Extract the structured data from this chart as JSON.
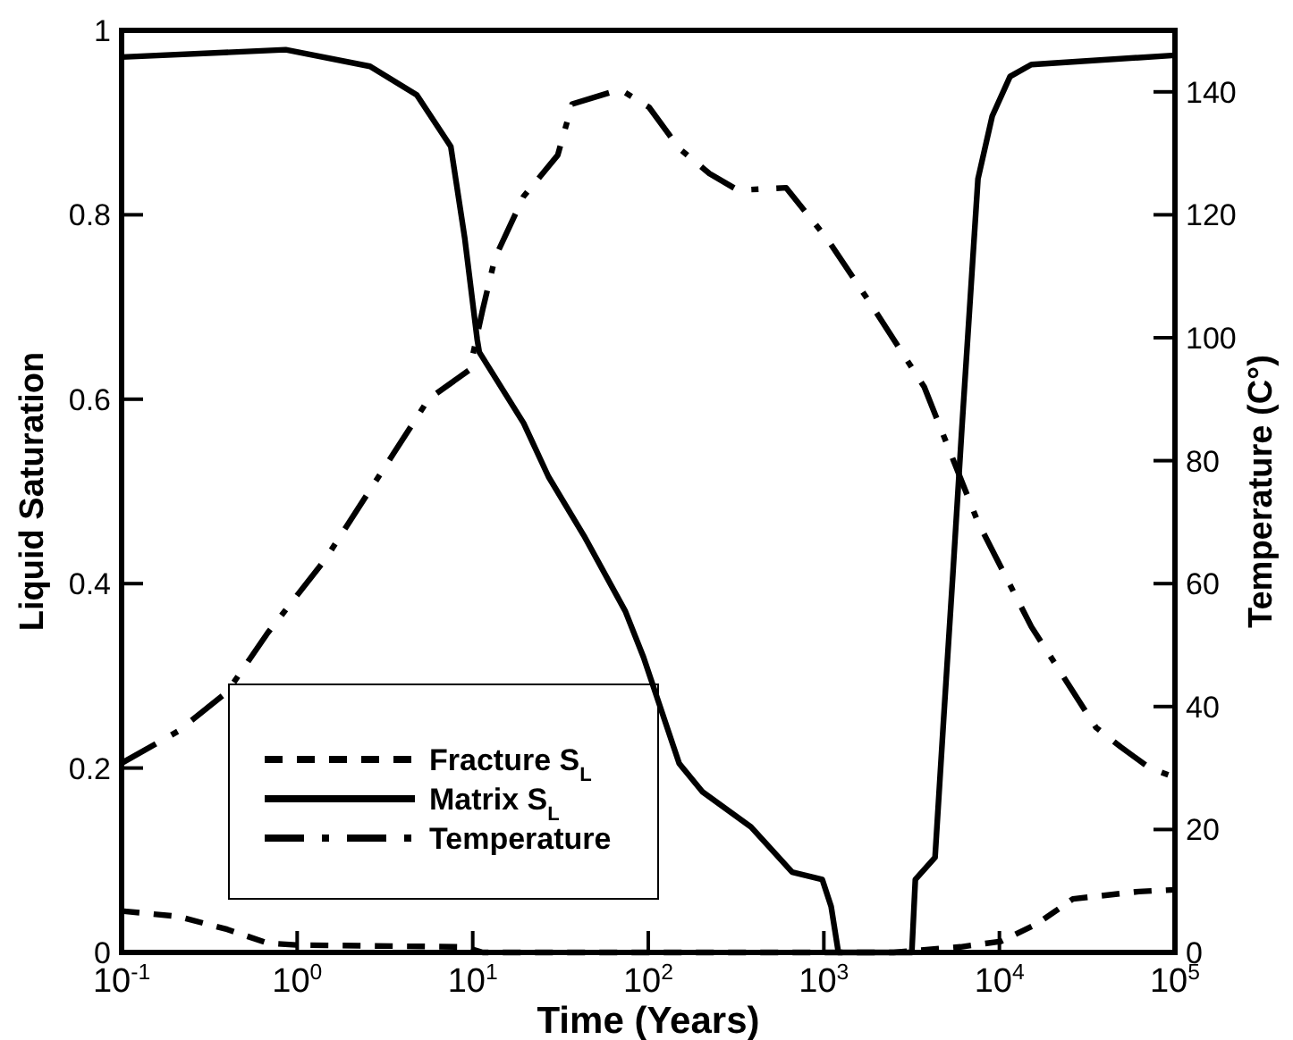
{
  "chart_data": {
    "type": "line",
    "xlabel": "Time (Years)",
    "ylabel": "Liquid Saturation",
    "y2label": "Temperature (C°)",
    "log": "x",
    "grid": false,
    "legend": "bottom left",
    "marker": "none",
    "xlim": [
      0.1,
      100000
    ],
    "xticks": [
      {
        "value": 0.1,
        "label": "10$^{-1}$"
      },
      {
        "value": 1,
        "label": "10$^{0}$"
      },
      {
        "value": 10,
        "label": "10$^{1}$"
      },
      {
        "value": 100,
        "label": "10$^{2}$"
      },
      {
        "value": 1000,
        "label": "10$^{3}$"
      },
      {
        "value": 10000,
        "label": "10$^{4}$"
      },
      {
        "value": 100000,
        "label": "10$^{5}$"
      }
    ],
    "ylim": [
      0,
      1
    ],
    "yticks": [
      0,
      0.2,
      0.4,
      0.6,
      0.8,
      1
    ],
    "y2lim": [
      0,
      150
    ],
    "y2ticks": [
      0,
      20,
      40,
      60,
      80,
      100,
      120,
      140
    ],
    "series": [
      {
        "name": "Fracture S$_{L}$",
        "color": "#000000",
        "line_style": "dashed",
        "x": [
          0.1,
          0.21,
          0.4,
          0.68,
          1.02,
          9,
          11.4,
          2500,
          6000,
          10200,
          16400,
          26200,
          62200,
          100000
        ],
        "values": [
          0.045,
          0.039,
          0.025,
          0.01,
          0.008,
          0.006,
          0,
          0,
          0.006,
          0.012,
          0.031,
          0.058,
          0.066,
          0.068
        ]
      },
      {
        "name": "Matrix S$_{L}$",
        "color": "#000000",
        "line_style": "solid",
        "x": [
          0.1,
          0.86,
          2.6,
          4.8,
          7.5,
          9,
          10.6,
          10.9,
          19.5,
          27,
          43,
          74,
          94,
          150,
          204,
          385,
          660,
          980,
          1100,
          1210,
          3170,
          3320,
          4300,
          4830,
          5430,
          6110,
          7550,
          9100,
          11500,
          15200,
          100000
        ],
        "values": [
          0.971,
          0.979,
          0.961,
          0.93,
          0.874,
          0.775,
          0.665,
          0.651,
          0.574,
          0.516,
          0.452,
          0.37,
          0.32,
          0.205,
          0.174,
          0.136,
          0.087,
          0.079,
          0.05,
          0,
          0,
          0.079,
          0.103,
          0.258,
          0.41,
          0.568,
          0.839,
          0.907,
          0.95,
          0.963,
          0.973
        ]
      },
      {
        "name": "Temperature",
        "color": "#000000",
        "line_style": "dashdot",
        "axis": "y2",
        "x": [
          0.1,
          0.21,
          0.4,
          0.68,
          1.45,
          5.6,
          9.6,
          11.4,
          13.4,
          19.5,
          30.5,
          36.8,
          69,
          101,
          150,
          223,
          324,
          610,
          1050,
          1850,
          3730,
          7550,
          15200,
          35500,
          49300,
          71700,
          100000
        ],
        "values": [
          30.8,
          36,
          42.4,
          52,
          64,
          90,
          94.8,
          104.6,
          113,
          123,
          129.7,
          138,
          140.4,
          137.5,
          130.8,
          126.7,
          124,
          124.4,
          116,
          105.5,
          92,
          70,
          53,
          36.6,
          33.4,
          30,
          28.5
        ]
      }
    ]
  }
}
